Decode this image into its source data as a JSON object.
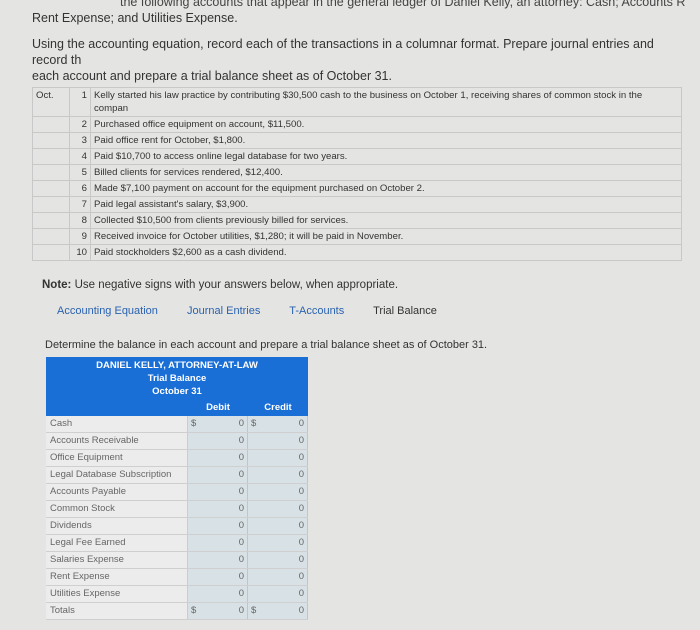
{
  "intro": {
    "line0": "the following accounts that appear in the general ledger of Daniel Kelly, an attorney: Cash; Accounts R",
    "line1": "Rent Expense; and Utilities Expense.",
    "line2": "Using the accounting equation, record each of the transactions in a columnar format. Prepare journal entries and record th",
    "line3": "each account and prepare a trial balance sheet as of October 31."
  },
  "transactions": {
    "month": "Oct.",
    "items": [
      {
        "day": "1",
        "text": "Kelly started his law practice by contributing $30,500 cash to the business on October 1, receiving shares of common stock in the compan"
      },
      {
        "day": "2",
        "text": "Purchased office equipment on account, $11,500."
      },
      {
        "day": "3",
        "text": "Paid office rent for October, $1,800."
      },
      {
        "day": "4",
        "text": "Paid $10,700 to access online legal database for two years."
      },
      {
        "day": "5",
        "text": "Billed clients for services rendered, $12,400."
      },
      {
        "day": "6",
        "text": "Made $7,100 payment on account for the equipment purchased on October 2."
      },
      {
        "day": "7",
        "text": "Paid legal assistant's salary, $3,900."
      },
      {
        "day": "8",
        "text": "Collected $10,500 from clients previously billed for services."
      },
      {
        "day": "9",
        "text": "Received invoice for October utilities, $1,280; it will be paid in November."
      },
      {
        "day": "10",
        "text": "Paid stockholders $2,600 as a cash dividend."
      }
    ]
  },
  "note": {
    "bold": "Note:",
    "text": " Use negative signs with your answers below, when appropriate."
  },
  "tabs": [
    "Accounting Equation",
    "Journal Entries",
    "T-Accounts",
    "Trial Balance"
  ],
  "instruction": "Determine the balance in each account and prepare a trial balance sheet as of October 31.",
  "trial_balance": {
    "company": "DANIEL KELLY, ATTORNEY-AT-LAW",
    "title": "Trial Balance",
    "date": "October 31",
    "debit_label": "Debit",
    "credit_label": "Credit",
    "currency": "$",
    "rows": [
      {
        "account": "Cash",
        "debit": "0",
        "credit": "0",
        "dollar": true
      },
      {
        "account": "Accounts Receivable",
        "debit": "0",
        "credit": "0"
      },
      {
        "account": "Office Equipment",
        "debit": "0",
        "credit": "0"
      },
      {
        "account": "Legal Database Subscription",
        "debit": "0",
        "credit": "0"
      },
      {
        "account": "Accounts Payable",
        "debit": "0",
        "credit": "0"
      },
      {
        "account": "Common Stock",
        "debit": "0",
        "credit": "0"
      },
      {
        "account": "Dividends",
        "debit": "0",
        "credit": "0"
      },
      {
        "account": "Legal Fee Earned",
        "debit": "0",
        "credit": "0"
      },
      {
        "account": "Salaries Expense",
        "debit": "0",
        "credit": "0"
      },
      {
        "account": "Rent Expense",
        "debit": "0",
        "credit": "0"
      },
      {
        "account": "Utilities Expense",
        "debit": "0",
        "credit": "0"
      },
      {
        "account": "Totals",
        "debit": "0",
        "credit": "0",
        "dollar": true
      }
    ]
  },
  "colors": {
    "header": "#1a6fd6",
    "input": "#d8e2e6",
    "link": "#2a62b0"
  }
}
